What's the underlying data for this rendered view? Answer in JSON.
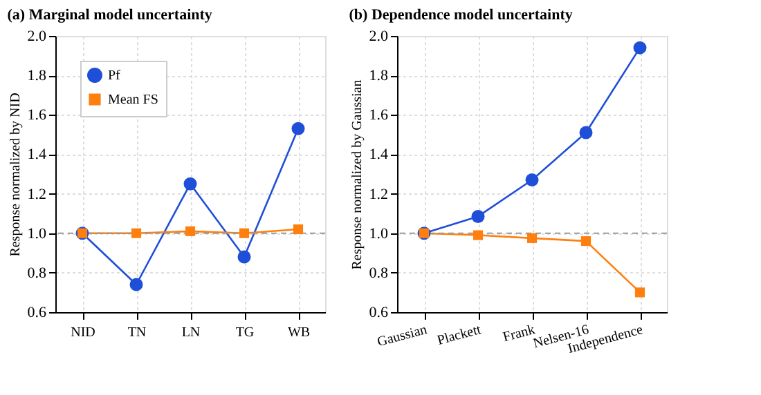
{
  "chart_data": [
    {
      "type": "line",
      "title": "(a) Marginal model uncertainty",
      "ylabel": "Response normalized by NID",
      "categories": [
        "NID",
        "TN",
        "LN",
        "TG",
        "WB"
      ],
      "series": [
        {
          "name": "Pf",
          "color": "#1f4fd8",
          "marker": "circle",
          "values": [
            1.0,
            0.74,
            1.25,
            0.88,
            1.53
          ]
        },
        {
          "name": "Mean FS",
          "color": "#ff7f0e",
          "marker": "square",
          "values": [
            1.0,
            1.0,
            1.01,
            1.0,
            1.02
          ]
        }
      ],
      "ylim": [
        0.6,
        2.0
      ],
      "yticks": [
        {
          "value": 0.6,
          "label": "0.6"
        },
        {
          "value": 0.8,
          "label": "0.8"
        },
        {
          "value": 1.0,
          "label": "1.0"
        },
        {
          "value": 1.2,
          "label": "1.2"
        },
        {
          "value": 1.4,
          "label": "1.4"
        },
        {
          "value": 1.6,
          "label": "1.6"
        },
        {
          "value": 1.8,
          "label": "1.8"
        },
        {
          "value": 2.0,
          "label": "2.0"
        }
      ],
      "grid": true,
      "legend": "top left",
      "line_style": "solid",
      "ref_lines": [
        {
          "axis": "y",
          "value": 1.0,
          "color": "#999999",
          "line_style": "dashed"
        }
      ]
    },
    {
      "type": "line",
      "title": "(b) Dependence model uncertainty",
      "ylabel": "Response normalized by Gaussian",
      "categories": [
        "Gaussian",
        "Plackett",
        "Frank",
        "Nelsen-16",
        "Independence"
      ],
      "series": [
        {
          "name": "Pf",
          "color": "#1f4fd8",
          "marker": "circle",
          "values": [
            1.0,
            1.085,
            1.27,
            1.51,
            1.94
          ]
        },
        {
          "name": "Mean FS",
          "color": "#ff7f0e",
          "marker": "square",
          "values": [
            1.0,
            0.99,
            0.975,
            0.96,
            0.7
          ]
        }
      ],
      "ylim": [
        0.6,
        2.0
      ],
      "yticks": [
        {
          "value": 0.6,
          "label": "0.6"
        },
        {
          "value": 0.8,
          "label": "0.8"
        },
        {
          "value": 1.0,
          "label": "1.0"
        },
        {
          "value": 1.2,
          "label": "1.2"
        },
        {
          "value": 1.4,
          "label": "1.4"
        },
        {
          "value": 1.6,
          "label": "1.6"
        },
        {
          "value": 1.8,
          "label": "1.8"
        },
        {
          "value": 2.0,
          "label": "2.0"
        }
      ],
      "grid": true,
      "legend": "top left",
      "line_style": "solid",
      "ref_lines": [
        {
          "axis": "y",
          "value": 1.0,
          "color": "#999999",
          "line_style": "dashed"
        }
      ]
    }
  ]
}
